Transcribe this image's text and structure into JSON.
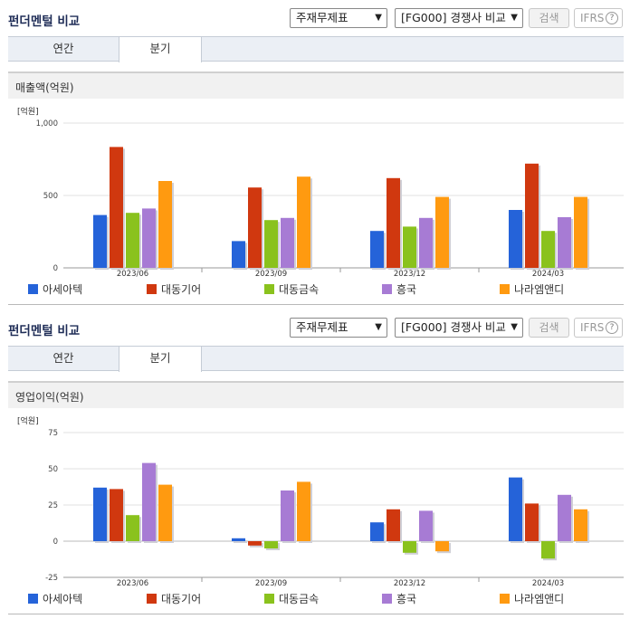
{
  "colors": [
    "#2563d9",
    "#d0380f",
    "#8ac21d",
    "#a77bd4",
    "#ff9a10"
  ],
  "panels": [
    {
      "title": "펀더멘털 비교",
      "select1": "주재무제표",
      "select2": "[FG000] 경쟁사 비교",
      "search_label": "검색",
      "ifrs_label": "IFRS",
      "help_label": "?",
      "tabs": [
        "연간",
        "분기"
      ],
      "subtitle": "매출액(억원)"
    },
    {
      "title": "펀더멘털 비교",
      "select1": "주재무제표",
      "select2": "[FG000] 경쟁사 비교",
      "search_label": "검색",
      "ifrs_label": "IFRS",
      "help_label": "?",
      "tabs": [
        "연간",
        "분기"
      ],
      "subtitle": "영업이익(억원)"
    }
  ],
  "chart_data": [
    {
      "type": "bar",
      "unit_label": "[억원]",
      "categories": [
        "2023/06",
        "2023/09",
        "2023/12",
        "2024/03"
      ],
      "ylim": [
        0,
        1000
      ],
      "yticks": [
        0,
        500,
        1000
      ],
      "ytick_labels": [
        "0",
        "500",
        "1,000"
      ],
      "series": [
        {
          "name": "아세아텍",
          "values": [
            365,
            185,
            255,
            400
          ]
        },
        {
          "name": "대동기어",
          "values": [
            835,
            555,
            620,
            720
          ]
        },
        {
          "name": "대동금속",
          "values": [
            380,
            330,
            285,
            255
          ]
        },
        {
          "name": "흥국",
          "values": [
            410,
            345,
            345,
            350
          ]
        },
        {
          "name": "나라엠앤디",
          "values": [
            600,
            630,
            490,
            490
          ]
        }
      ]
    },
    {
      "type": "bar",
      "unit_label": "[억원]",
      "categories": [
        "2023/06",
        "2023/09",
        "2023/12",
        "2024/03"
      ],
      "ylim": [
        -25,
        75
      ],
      "yticks": [
        -25,
        0,
        25,
        50,
        75
      ],
      "ytick_labels": [
        "-25",
        "0",
        "25",
        "50",
        "75"
      ],
      "series": [
        {
          "name": "아세아텍",
          "values": [
            37,
            2,
            13,
            44
          ]
        },
        {
          "name": "대동기어",
          "values": [
            36,
            -3,
            22,
            26
          ]
        },
        {
          "name": "대동금속",
          "values": [
            18,
            -5,
            -8,
            -12
          ]
        },
        {
          "name": "흥국",
          "values": [
            54,
            35,
            21,
            32
          ]
        },
        {
          "name": "나라엠앤디",
          "values": [
            39,
            41,
            -7,
            22
          ]
        }
      ]
    }
  ]
}
